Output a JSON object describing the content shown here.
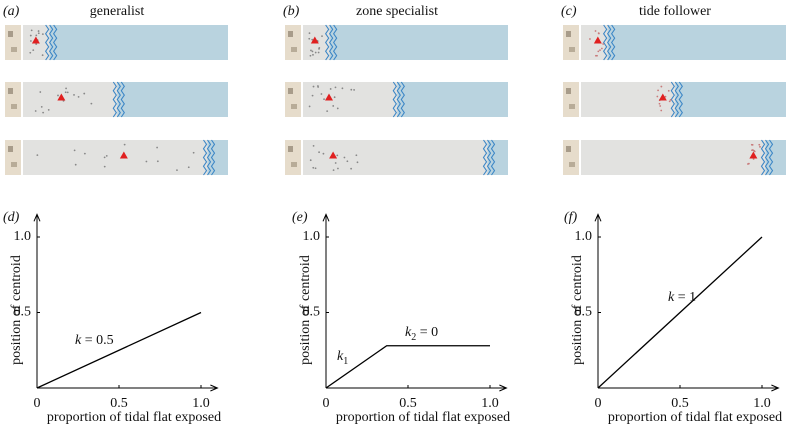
{
  "diagrams": [
    {
      "label": "(a)",
      "title": "generalist"
    },
    {
      "label": "(b)",
      "title": "zone specialist"
    },
    {
      "label": "(c)",
      "title": "tide follower"
    }
  ],
  "chart_data": [
    {
      "type": "line",
      "label": "(d)",
      "xlabel": "proportion of tidal flat exposed",
      "ylabel": "position of centroid",
      "x": [
        0,
        1
      ],
      "series": [
        {
          "values": [
            0,
            0.5
          ],
          "color": "#000000"
        }
      ],
      "xlim": [
        0,
        1.1
      ],
      "ylim": [
        0,
        1.15
      ],
      "xticks": [
        0,
        0.5,
        {
          "value": 1,
          "label": "1.0"
        }
      ],
      "yticks": [
        0.5,
        {
          "value": 1,
          "label": "1.0"
        }
      ],
      "annotations": [
        {
          "text": "k",
          "after": " = 0.5"
        }
      ]
    },
    {
      "type": "line",
      "label": "(e)",
      "xlabel": "proportion of tidal flat exposed",
      "ylabel": "position of centroid",
      "x": [
        0,
        0.37,
        1
      ],
      "series": [
        {
          "values": [
            0,
            0.28,
            0.28
          ],
          "color": "#000000"
        }
      ],
      "xlim": [
        0,
        1.1
      ],
      "ylim": [
        0,
        1.15
      ],
      "xticks": [
        0,
        0.5,
        {
          "value": 1,
          "label": "1.0"
        }
      ],
      "yticks": [
        0.5,
        {
          "value": 1,
          "label": "1.0"
        }
      ],
      "annotations": [
        {
          "text": "k",
          "sub": "1"
        },
        {
          "text": "k",
          "sub": "2",
          "after": " = 0"
        }
      ]
    },
    {
      "type": "line",
      "label": "(f)",
      "xlabel": "proportion of tidal flat exposed",
      "ylabel": "position of centroid",
      "x": [
        0,
        1
      ],
      "series": [
        {
          "values": [
            0,
            1
          ],
          "color": "#000000"
        }
      ],
      "xlim": [
        0,
        1.1
      ],
      "ylim": [
        0,
        1.15
      ],
      "xticks": [
        0,
        0.5,
        {
          "value": 1,
          "label": "1.0"
        }
      ],
      "yticks": [
        0.5,
        {
          "value": 1,
          "label": "1.0"
        }
      ],
      "annotations": [
        {
          "text": "k",
          "after": " = 1"
        }
      ]
    }
  ]
}
